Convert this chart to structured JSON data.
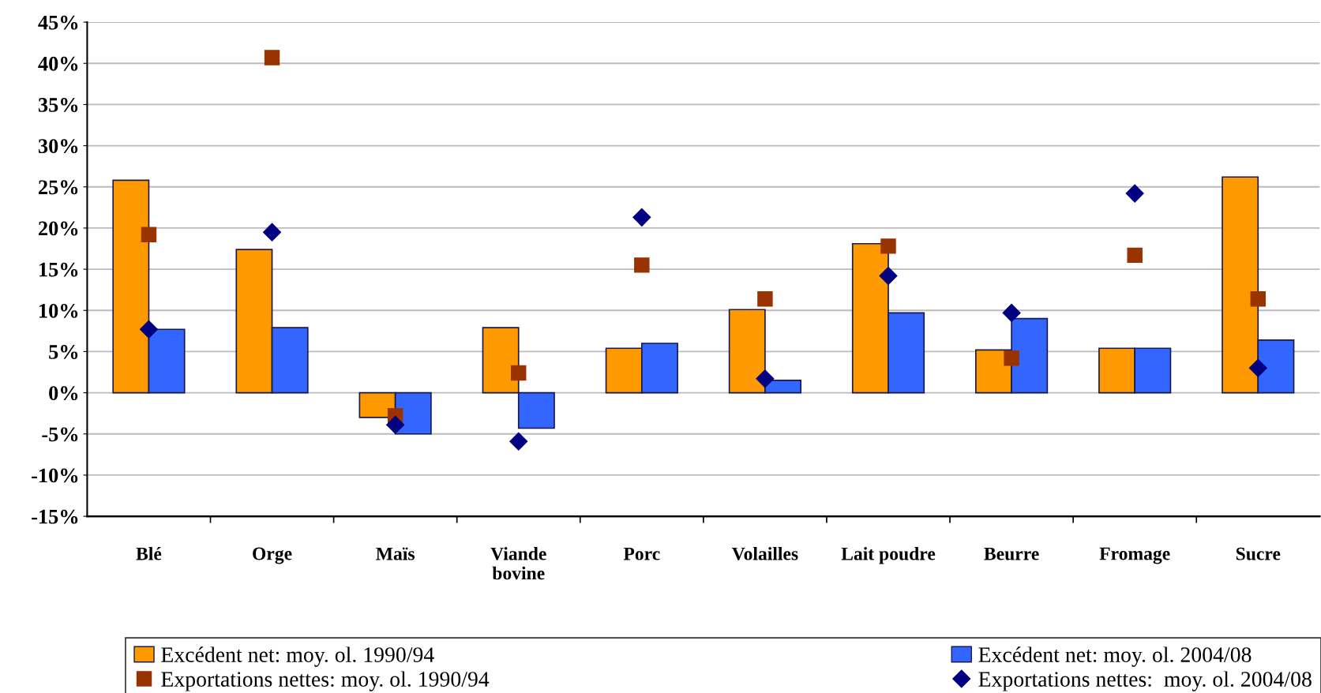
{
  "chart_data": {
    "type": "bar",
    "categories": [
      "Blé",
      "Orge",
      "Maïs",
      "Viande\nbovine",
      "Porc",
      "Volailles",
      "Lait poudre",
      "Beurre",
      "Fromage",
      "Sucre"
    ],
    "series": [
      {
        "name": "Excédent net: moy. ol. 1990/94",
        "color": "#ff9900",
        "values": [
          25.8,
          17.4,
          -3.0,
          7.9,
          5.4,
          10.1,
          18.1,
          5.2,
          5.4,
          26.2
        ]
      },
      {
        "name": "Excédent net: moy. ol. 2004/08",
        "color": "#3366ff",
        "values": [
          7.7,
          7.9,
          -5.0,
          -4.3,
          6.0,
          1.5,
          9.7,
          9.0,
          5.4,
          6.4
        ]
      },
      {
        "name": "Exportations nettes: moy. ol. 1990/94",
        "type": "scatter",
        "marker": "square",
        "color": "#993300",
        "values": [
          19.2,
          40.7,
          -2.8,
          2.4,
          15.5,
          11.4,
          17.8,
          4.2,
          16.7,
          11.4
        ]
      },
      {
        "name": "Exportations nettes:  moy. ol. 2004/08",
        "type": "scatter",
        "marker": "diamond",
        "color": "#000080",
        "values": [
          7.7,
          19.5,
          -3.9,
          -5.9,
          21.3,
          1.7,
          14.2,
          9.7,
          24.2,
          3.0
        ]
      }
    ],
    "ylim": [
      -15,
      45
    ],
    "yticks": [
      {
        "value": -15,
        "label": "-15%"
      },
      {
        "value": -10,
        "label": "-10%"
      },
      {
        "value": -5,
        "label": "-5%"
      },
      {
        "value": 0,
        "label": "0%"
      },
      {
        "value": 5,
        "label": "5%"
      },
      {
        "value": 10,
        "label": "10%"
      },
      {
        "value": 15,
        "label": "15%"
      },
      {
        "value": 20,
        "label": "20%"
      },
      {
        "value": 25,
        "label": "25%"
      },
      {
        "value": 30,
        "label": "30%"
      },
      {
        "value": 35,
        "label": "35%"
      },
      {
        "value": 40,
        "label": "40%"
      },
      {
        "value": 45,
        "label": "45%"
      }
    ],
    "grid": "y",
    "legend": "bottom"
  }
}
